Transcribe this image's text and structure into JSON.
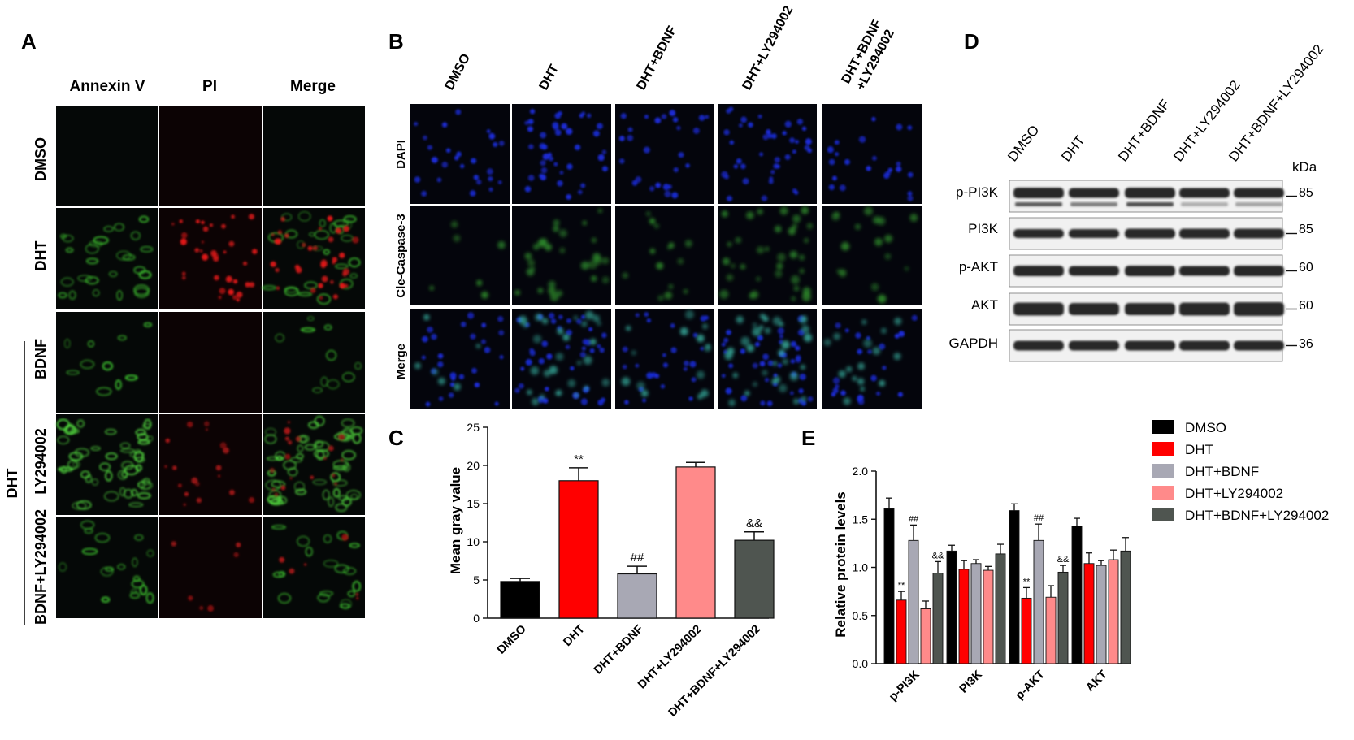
{
  "panels": {
    "a": "A",
    "b": "B",
    "c": "C",
    "d": "D",
    "e": "E"
  },
  "panel_a": {
    "columns": [
      "Annexin V",
      "PI",
      "Merge"
    ],
    "rows": [
      "DMSO",
      "DHT",
      "BDNF",
      "LY294002",
      "BDNF+LY294002"
    ],
    "group_label": "DHT"
  },
  "panel_b": {
    "columns": [
      "DMSO",
      "DHT",
      "DHT+BDNF",
      "DHT+LY294002",
      "DHT+BDNF",
      "+LY294002"
    ],
    "rows": [
      "DAPI",
      "Cle-Caspase-3",
      "Merge"
    ]
  },
  "panel_d": {
    "columns": [
      "DMSO",
      "DHT",
      "DHT+BDNF",
      "DHT+LY294002",
      "DHT+BDNF+LY294002"
    ],
    "kda_label": "kDa",
    "bands": [
      {
        "name": "p-PI3K",
        "kda": "85"
      },
      {
        "name": "PI3K",
        "kda": "85"
      },
      {
        "name": "p-AKT",
        "kda": "60"
      },
      {
        "name": "AKT",
        "kda": "60"
      },
      {
        "name": "GAPDH",
        "kda": "36"
      }
    ]
  },
  "legend": {
    "items": [
      {
        "name": "DMSO",
        "color": "#000000"
      },
      {
        "name": "DHT",
        "color": "#ff0000"
      },
      {
        "name": "DHT+BDNF",
        "color": "#a8a8b4"
      },
      {
        "name": "DHT+LY294002",
        "color": "#ff8a8a"
      },
      {
        "name": "DHT+BDNF+LY294002",
        "color": "#4f5550"
      }
    ]
  },
  "chart_data": [
    {
      "type": "bar",
      "ylabel": "Mean gray value",
      "ylim": [
        0,
        25
      ],
      "yticks": [
        "0",
        "5",
        "10",
        "15",
        "20",
        "25"
      ],
      "categories": [
        "DMSO",
        "DHT",
        "DHT+BDNF",
        "DHT+LY294002",
        "DHT+BDNF+LY294002"
      ],
      "values": [
        4.8,
        18.0,
        5.8,
        19.8,
        10.2
      ],
      "errors": [
        0.4,
        1.7,
        1.0,
        0.6,
        1.1
      ],
      "colors": [
        "#000000",
        "#ff0000",
        "#a8a8b4",
        "#ff8a8a",
        "#4f5550"
      ],
      "annotations": [
        "",
        "**",
        "##",
        "",
        "&&"
      ]
    },
    {
      "type": "bar",
      "ylabel": "Relative protein levels",
      "ylim": [
        0,
        2.0
      ],
      "yticks": [
        "0.0",
        "0.5",
        "1.0",
        "1.5",
        "2.0"
      ],
      "categories": [
        "p-PI3K",
        "PI3K",
        "p-AKT",
        "AKT"
      ],
      "series": [
        {
          "name": "DMSO",
          "values": [
            1.61,
            1.17,
            1.59,
            1.43
          ],
          "errors": [
            0.11,
            0.06,
            0.07,
            0.08
          ]
        },
        {
          "name": "DHT",
          "values": [
            0.66,
            0.98,
            0.68,
            1.04
          ],
          "errors": [
            0.09,
            0.09,
            0.11,
            0.11
          ]
        },
        {
          "name": "DHT+BDNF",
          "values": [
            1.28,
            1.04,
            1.28,
            1.02
          ],
          "errors": [
            0.16,
            0.04,
            0.17,
            0.05
          ]
        },
        {
          "name": "DHT+LY294002",
          "values": [
            0.57,
            0.97,
            0.69,
            1.08
          ],
          "errors": [
            0.08,
            0.04,
            0.12,
            0.1
          ]
        },
        {
          "name": "DHT+BDNF+LY294002",
          "values": [
            0.94,
            1.14,
            0.95,
            1.17
          ],
          "errors": [
            0.12,
            0.1,
            0.07,
            0.14
          ]
        }
      ],
      "annotations": [
        {
          "category": "p-PI3K",
          "series": "DHT",
          "text": "**"
        },
        {
          "category": "p-PI3K",
          "series": "DHT+BDNF",
          "text": "##"
        },
        {
          "category": "p-PI3K",
          "series": "DHT+BDNF+LY294002",
          "text": "&&"
        },
        {
          "category": "p-AKT",
          "series": "DHT",
          "text": "**"
        },
        {
          "category": "p-AKT",
          "series": "DHT+BDNF",
          "text": "##"
        },
        {
          "category": "p-AKT",
          "series": "DHT+BDNF+LY294002",
          "text": "&&"
        }
      ]
    }
  ]
}
